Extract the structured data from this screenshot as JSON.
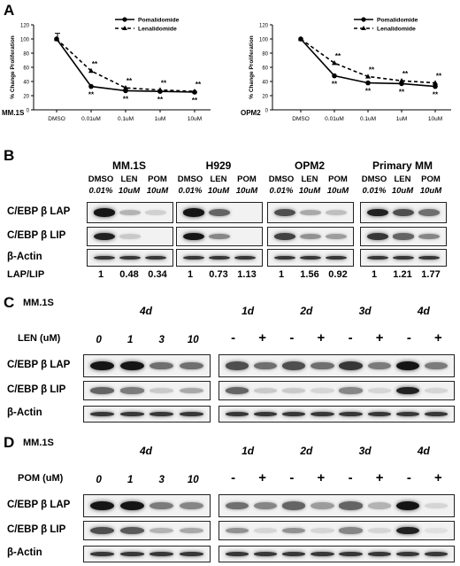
{
  "panelA": {
    "letter": "A",
    "charts": [
      {
        "cell_line": "MM.1S",
        "ylabel": "% Change Proliferation",
        "categories": [
          "DMSO",
          "0.01uM",
          "0.1uM",
          "1uM",
          "10uM"
        ],
        "series": [
          {
            "name": "Pomalidomide",
            "values": [
              100,
              33,
              27,
              26,
              25
            ]
          },
          {
            "name": "Lenalidomide",
            "values": [
              100,
              55,
              31,
              28,
              26
            ]
          }
        ],
        "sig_top": [
          "",
          "**",
          "**",
          "**",
          "**"
        ],
        "sig_bottom": [
          "",
          "**",
          "**",
          "**",
          "**"
        ]
      },
      {
        "cell_line": "OPM2",
        "ylabel": "% Change Proliferation",
        "categories": [
          "DMSO",
          "0.01uM",
          "0.1uM",
          "1uM",
          "10uM"
        ],
        "series": [
          {
            "name": "Pomalidomide",
            "values": [
              100,
              48,
              38,
              37,
              33
            ]
          },
          {
            "name": "Lenalidomide",
            "values": [
              100,
              66,
              47,
              41,
              38
            ]
          }
        ],
        "sig_top": [
          "",
          "**",
          "**",
          "**",
          "**"
        ],
        "sig_bottom": [
          "",
          "**",
          "**",
          "**",
          "**"
        ]
      }
    ],
    "chart_data": [
      {
        "type": "line",
        "ylabel": "% Change Proliferation",
        "xlabel": "",
        "categories": [
          "DMSO",
          "0.01uM",
          "0.1uM",
          "1uM",
          "10uM"
        ],
        "ylim": [
          0,
          120
        ],
        "yticks": [
          0,
          20,
          40,
          60,
          80,
          100,
          120
        ],
        "series": [
          {
            "name": "Pomalidomide",
            "values": [
              100,
              33,
              27,
              26,
              25
            ]
          },
          {
            "name": "Lenalidomide",
            "values": [
              100,
              55,
              31,
              28,
              26
            ]
          }
        ],
        "legend": "top-right",
        "annotation": "MM.1S"
      },
      {
        "type": "line",
        "ylabel": "% Change Proliferation",
        "xlabel": "",
        "categories": [
          "DMSO",
          "0.01uM",
          "0.1uM",
          "1uM",
          "10uM"
        ],
        "ylim": [
          0,
          120
        ],
        "yticks": [
          0,
          20,
          40,
          60,
          80,
          100,
          120
        ],
        "series": [
          {
            "name": "Pomalidomide",
            "values": [
              100,
              48,
              38,
              37,
              33
            ]
          },
          {
            "name": "Lenalidomide",
            "values": [
              100,
              66,
              47,
              41,
              38
            ]
          }
        ],
        "legend": "top-right",
        "annotation": "OPM2"
      }
    ]
  },
  "panelB": {
    "letter": "B",
    "groups": [
      {
        "title": "MM.1S",
        "lanes": [
          "DMSO",
          "LEN",
          "POM"
        ],
        "doses": [
          "0.01%",
          "10uM",
          "10uM"
        ],
        "ratios": [
          "1",
          "0.48",
          "0.34"
        ]
      },
      {
        "title": "H929",
        "lanes": [
          "DMSO",
          "LEN",
          "POM"
        ],
        "doses": [
          "0.01%",
          "10uM",
          "10uM"
        ],
        "ratios": [
          "1",
          "0.73",
          "1.13"
        ]
      },
      {
        "title": "OPM2",
        "lanes": [
          "DMSO",
          "LEN",
          "POM"
        ],
        "doses": [
          "0.01%",
          "10uM",
          "10uM"
        ],
        "ratios": [
          "1",
          "1.56",
          "0.92"
        ]
      },
      {
        "title": "Primary MM",
        "lanes": [
          "DMSO",
          "LEN",
          "POM"
        ],
        "doses": [
          "0.01%",
          "10uM",
          "10uM"
        ],
        "ratios": [
          "1",
          "1.21",
          "1.77"
        ]
      }
    ],
    "row_labels": [
      "C/EBP β LAP",
      "C/EBP β LIP",
      "β-Actin"
    ],
    "ratio_label": "LAP/LIP"
  },
  "panelC": {
    "letter": "C",
    "cell_line": "MM.1S",
    "drug_label": "LEN (uM)",
    "left_time": "4d",
    "doses": [
      "0",
      "1",
      "3",
      "10"
    ],
    "days": [
      "1d",
      "2d",
      "3d",
      "4d"
    ],
    "signs": [
      "-",
      "+",
      "-",
      "+",
      "-",
      "+",
      "-",
      "+"
    ],
    "row_labels": [
      "C/EBP β LAP",
      "C/EBP β LIP",
      "β-Actin"
    ]
  },
  "panelD": {
    "letter": "D",
    "cell_line": "MM.1S",
    "drug_label": "POM (uM)",
    "left_time": "4d",
    "doses": [
      "0",
      "1",
      "3",
      "10"
    ],
    "days": [
      "1d",
      "2d",
      "3d",
      "4d"
    ],
    "signs": [
      "-",
      "+",
      "-",
      "+",
      "-",
      "+",
      "-",
      "+"
    ],
    "row_labels": [
      "C/EBP β LAP",
      "C/EBP β LIP",
      "β-Actin"
    ]
  }
}
